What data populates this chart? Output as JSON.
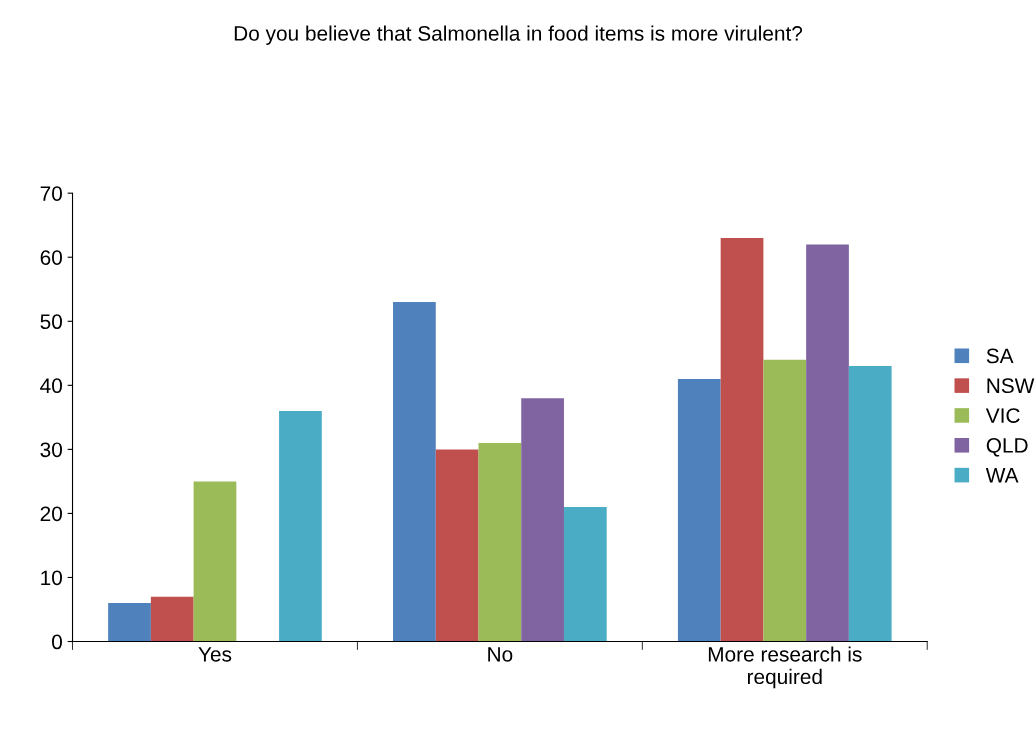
{
  "chart_data": {
    "type": "bar",
    "title": "Do you believe that Salmonella in food items is more virulent?",
    "categories": [
      "Yes",
      "No",
      "More research is\nrequired"
    ],
    "series": [
      {
        "name": "SA",
        "color": "#4f81bd",
        "values": [
          6,
          53,
          41
        ]
      },
      {
        "name": "NSW",
        "color": "#c0504d",
        "values": [
          7,
          30,
          63
        ]
      },
      {
        "name": "VIC",
        "color": "#9bbb59",
        "values": [
          25,
          31,
          44
        ]
      },
      {
        "name": "QLD",
        "color": "#8064a2",
        "values": [
          0,
          38,
          62
        ]
      },
      {
        "name": "WA",
        "color": "#4bacc6",
        "values": [
          36,
          21,
          43
        ]
      }
    ],
    "ylim": [
      0,
      70
    ],
    "yticks": [
      0,
      10,
      20,
      30,
      40,
      50,
      60,
      70
    ],
    "grid": false,
    "legend": "right"
  }
}
